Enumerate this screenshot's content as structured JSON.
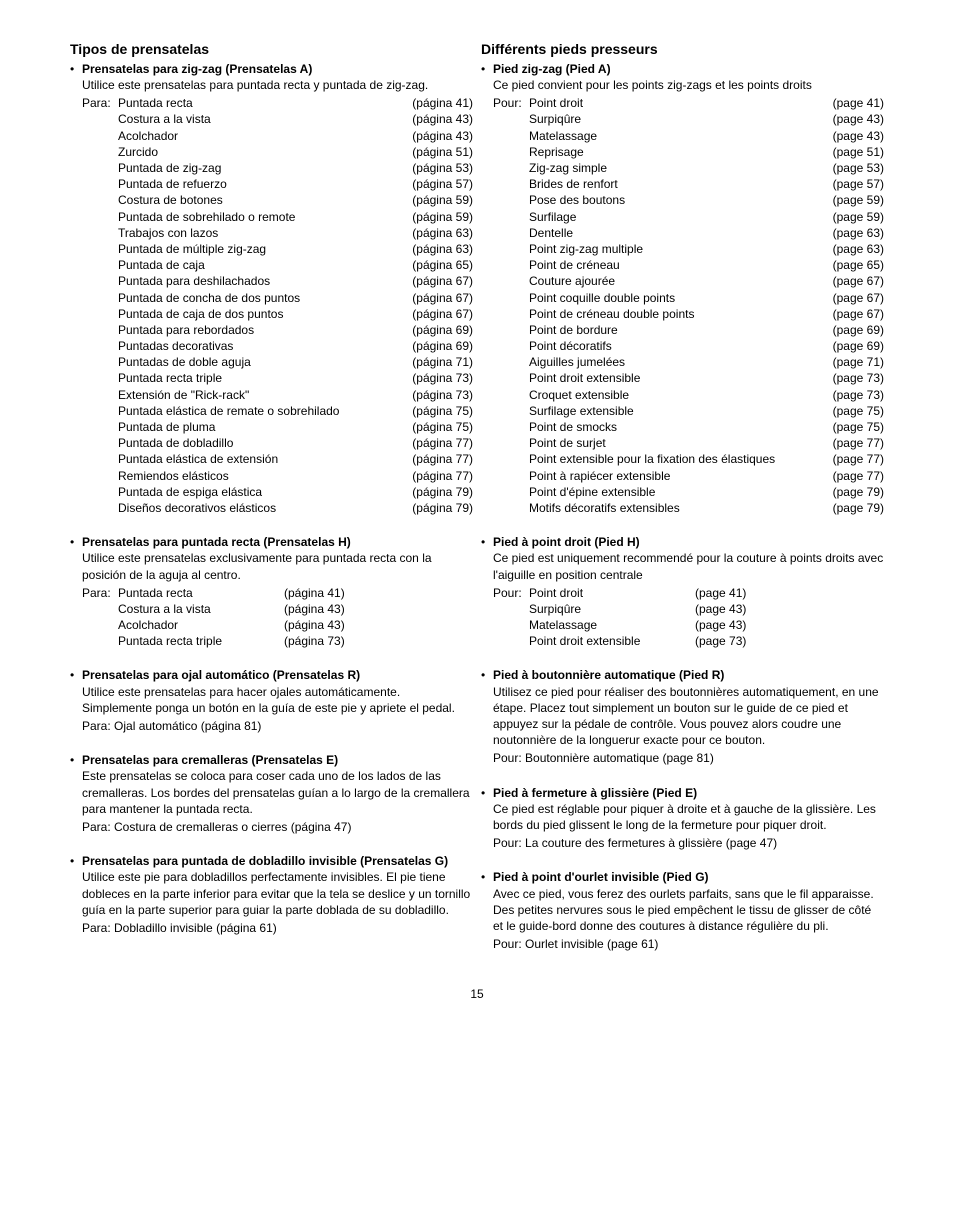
{
  "page_number": "15",
  "left": {
    "heading": "Tipos de prensatelas",
    "sections": [
      {
        "title": "Prensatelas para zig-zag (Prensatelas A)",
        "desc": "Utilice este prensatelas para puntada recta y puntada de zig-zag.",
        "list_label": "Para:",
        "items": [
          {
            "name": "Puntada recta",
            "page": "(página 41)"
          },
          {
            "name": "Costura a la vista",
            "page": "(página 43)"
          },
          {
            "name": "Acolchador",
            "page": "(página 43)"
          },
          {
            "name": "Zurcido",
            "page": "(página 51)"
          },
          {
            "name": "Puntada de zig-zag",
            "page": "(página 53)"
          },
          {
            "name": "Puntada de refuerzo",
            "page": "(página 57)"
          },
          {
            "name": "Costura de botones",
            "page": "(página 59)"
          },
          {
            "name": "Puntada de sobrehilado o remote",
            "page": "(página 59)"
          },
          {
            "name": "Trabajos con lazos",
            "page": "(página 63)"
          },
          {
            "name": "Puntada de múltiple zig-zag",
            "page": "(página 63)"
          },
          {
            "name": "Puntada de caja",
            "page": "(página 65)"
          },
          {
            "name": "Puntada para deshilachados",
            "page": "(página 67)"
          },
          {
            "name": "Puntada de concha de dos puntos",
            "page": "(página 67)"
          },
          {
            "name": "Puntada de caja de dos puntos",
            "page": "(página 67)"
          },
          {
            "name": "Puntada para rebordados",
            "page": "(página 69)"
          },
          {
            "name": "Puntadas decorativas",
            "page": "(página 69)"
          },
          {
            "name": "Puntadas de doble aguja",
            "page": "(página 71)"
          },
          {
            "name": "Puntada recta triple",
            "page": "(página 73)"
          },
          {
            "name": "Extensión de \"Rick-rack\"",
            "page": "(página 73)"
          },
          {
            "name": "Puntada elástica de remate o sobrehilado",
            "page": "(página 75)"
          },
          {
            "name": "Puntada de pluma",
            "page": "(página 75)"
          },
          {
            "name": "Puntada de dobladillo",
            "page": "(página 77)"
          },
          {
            "name": "Puntada elástica de extensión",
            "page": "(página 77)"
          },
          {
            "name": "Remiendos elásticos",
            "page": "(página 77)"
          },
          {
            "name": "Puntada de espiga elástica",
            "page": "(página 79)"
          },
          {
            "name": "Diseños decorativos elásticos",
            "page": "(página 79)"
          }
        ]
      },
      {
        "title": "Prensatelas para puntada recta (Prensatelas H)",
        "desc": "Utilice este prensatelas exclusivamente para puntada recta con la posición de la aguja al centro.",
        "list_label": "Para:",
        "items": [
          {
            "name": "Puntada recta",
            "page": "(página 41)"
          },
          {
            "name": "Costura a la vista",
            "page": "(página 43)"
          },
          {
            "name": "Acolchador",
            "page": "(página 43)"
          },
          {
            "name": "Puntada recta triple",
            "page": "(página 73)"
          }
        ],
        "short_list": true
      },
      {
        "title": "Prensatelas para ojal automático (Prensatelas R)",
        "desc": "Utilice este prensatelas para hacer ojales automáticamente. Simplemente ponga un botón en la guía de este pie y apriete el pedal.",
        "post": "Para: Ojal automático (página 81)"
      },
      {
        "title": "Prensatelas para cremalleras (Prensatelas E)",
        "desc": "Este prensatelas se coloca para coser cada uno de los lados de las cremalleras. Los bordes del prensatelas guían a lo largo de la cremallera para mantener la puntada recta.",
        "post": "Para: Costura de cremalleras o cierres (página 47)"
      },
      {
        "title": "Prensatelas para puntada de dobladillo invisible (Prensatelas G)",
        "desc": "Utilice este pie para dobladillos perfectamente invisibles. El pie tiene dobleces en la parte inferior para evitar que la tela se deslice y un tornillo guía en la parte superior para guiar la parte doblada de su dobladillo.",
        "post": "Para: Dobladillo invisible (página 61)"
      }
    ]
  },
  "right": {
    "heading": "Différents pieds presseurs",
    "sections": [
      {
        "title": "Pied zig-zag (Pied A)",
        "desc": "Ce pied convient pour les points zig-zags et les points droits",
        "list_label": "Pour:",
        "items": [
          {
            "name": "Point droit",
            "page": "(page 41)"
          },
          {
            "name": "Surpiqûre",
            "page": "(page 43)"
          },
          {
            "name": "Matelassage",
            "page": "(page 43)"
          },
          {
            "name": "Reprisage",
            "page": "(page 51)"
          },
          {
            "name": "Zig-zag simple",
            "page": "(page 53)"
          },
          {
            "name": "Brides de renfort",
            "page": "(page 57)"
          },
          {
            "name": "Pose des boutons",
            "page": "(page 59)"
          },
          {
            "name": "Surfilage",
            "page": "(page 59)"
          },
          {
            "name": "Dentelle",
            "page": "(page 63)"
          },
          {
            "name": "Point zig-zag multiple",
            "page": "(page 63)"
          },
          {
            "name": "Point de créneau",
            "page": "(page 65)"
          },
          {
            "name": "Couture ajourée",
            "page": "(page 67)"
          },
          {
            "name": "Point coquille double points",
            "page": "(page 67)"
          },
          {
            "name": "Point de créneau double points",
            "page": "(page 67)"
          },
          {
            "name": "Point de bordure",
            "page": "(page 69)"
          },
          {
            "name": "Point décoratifs",
            "page": "(page 69)"
          },
          {
            "name": "Aiguilles jumelées",
            "page": "(page 71)"
          },
          {
            "name": "Point droit extensible",
            "page": "(page 73)"
          },
          {
            "name": "Croquet extensible",
            "page": "(page 73)"
          },
          {
            "name": "Surfilage extensible",
            "page": "(page 75)"
          },
          {
            "name": "Point de smocks",
            "page": "(page 75)"
          },
          {
            "name": "Point de surjet",
            "page": "(page 77)"
          },
          {
            "name": "Point extensible pour la fixation des élastiques",
            "page": "(page 77)"
          },
          {
            "name": "Point à rapiécer extensible",
            "page": "(page 77)"
          },
          {
            "name": "Point d'épine extensible",
            "page": "(page 79)"
          },
          {
            "name": "Motifs décoratifs extensibles",
            "page": "(page 79)"
          }
        ]
      },
      {
        "title": "Pied à point droit (Pied H)",
        "desc": "Ce pied est uniquement recommendé pour la couture à points droits avec l'aiguille en position centrale",
        "list_label": "Pour:",
        "items": [
          {
            "name": "Point droit",
            "page": "(page 41)"
          },
          {
            "name": "Surpiqûre",
            "page": "(page 43)"
          },
          {
            "name": "Matelassage",
            "page": "(page 43)"
          },
          {
            "name": "Point droit extensible",
            "page": "(page 73)"
          }
        ],
        "short_list": true
      },
      {
        "title": "Pied à boutonnière automatique (Pied R)",
        "desc": "Utilisez ce pied pour réaliser des boutonnières automatiquement, en une étape. Placez tout simplement un bouton sur le guide de ce pied et appuyez sur la pédale de contrôle. Vous pouvez alors coudre une noutonnière de la longuerur exacte pour ce bouton.",
        "post": "Pour: Boutonnière automatique (page 81)"
      },
      {
        "title": "Pied à fermeture à glissière (Pied E)",
        "desc": "Ce pied est réglable pour piquer à droite et à gauche de la glissière. Les bords du pied glissent le long de la fermeture pour piquer droit.",
        "post": "Pour: La couture des fermetures à glissière (page 47)"
      },
      {
        "title": "Pied à point d'ourlet invisible (Pied G)",
        "desc": "Avec ce pied, vous ferez des ourlets parfaits, sans que le fil apparaisse. Des petites nervures sous le pied empêchent le tissu de glisser de côté et le guide-bord donne des coutures à distance régulière du pli.",
        "post": "Pour: Ourlet invisible (page 61)"
      }
    ]
  }
}
